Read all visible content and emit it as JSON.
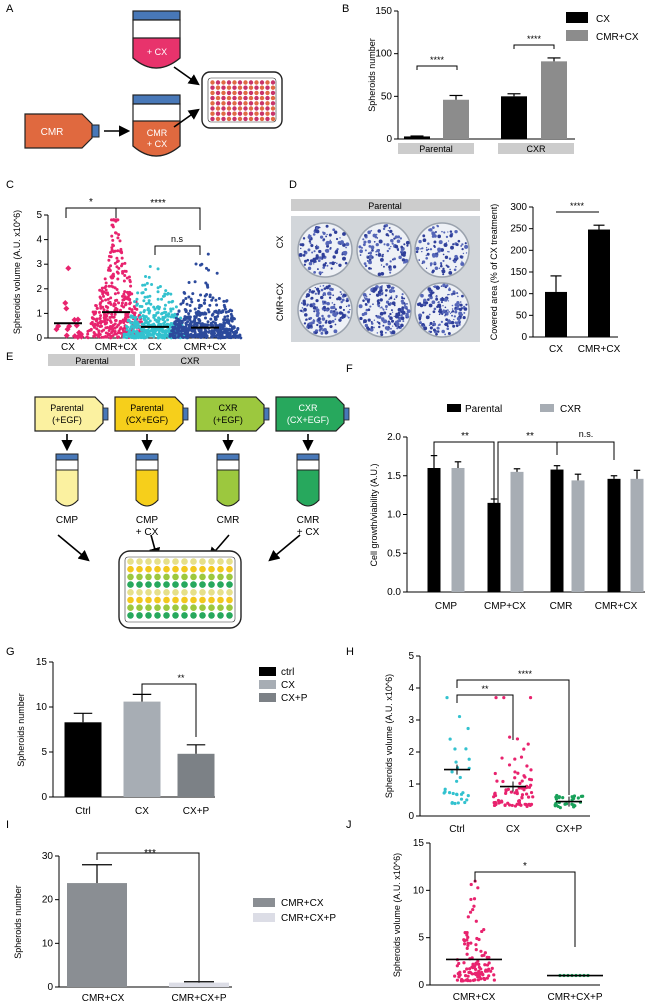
{
  "panel_labels": [
    "A",
    "B",
    "C",
    "D",
    "E",
    "F",
    "G",
    "H",
    "I",
    "J"
  ],
  "colors": {
    "black": "#000000",
    "grey": "#8c8c8c",
    "light_grey": "#a7adb4",
    "dark_grey": "#7c8186",
    "pink": "#e8236e",
    "cyan": "#33c2cf",
    "navy": "#2c4a9c",
    "green": "#19a15a",
    "tube_pink": "#e8336c",
    "tube_orange": "#e0693f",
    "cap_blue": "#4878b8",
    "yellow_light": "#fbf1a0",
    "yellow": "#f6cf1b",
    "lime": "#9cc83e",
    "green_dark": "#27a85d"
  },
  "panelA": {
    "tube1_label": "+ CX",
    "flask_label": "CMR",
    "tube2_label_line1": "CMR",
    "tube2_label_line2": "+ CX"
  },
  "panelD": {
    "plate_header": "Parental",
    "row1": "CX",
    "row2": "CMR+CX"
  },
  "panelE": {
    "boxes": [
      {
        "line1": "Parental",
        "line2": "(+EGF)",
        "color": "#fbf1a0"
      },
      {
        "line1": "Parental",
        "line2": "(CX+EGF)",
        "color": "#f6cf1b"
      },
      {
        "line1": "CXR",
        "line2": "(+EGF)",
        "color": "#9cc83e"
      },
      {
        "line1": "CXR",
        "line2": "(CX+EGF)",
        "color": "#27a85d"
      }
    ],
    "tube_labels": [
      {
        "line1": "CMP",
        "line2": ""
      },
      {
        "line1": "CMP",
        "line2": "+ CX"
      },
      {
        "line1": "CMR",
        "line2": ""
      },
      {
        "line1": "CMR",
        "line2": "+ CX"
      }
    ]
  },
  "chart_data": [
    {
      "id": "B",
      "type": "bar",
      "ylabel": "Spheroids number",
      "ylim": [
        0,
        150
      ],
      "yticks": [
        "0",
        "50",
        "100",
        "150"
      ],
      "groups": [
        "Parental",
        "CXR"
      ],
      "legend": [
        "CX",
        "CMR+CX"
      ],
      "series": [
        {
          "name": "CX",
          "values": [
            3,
            50
          ],
          "errors": [
            0.5,
            3
          ],
          "color": "#000000"
        },
        {
          "name": "CMR+CX",
          "values": [
            46,
            91
          ],
          "errors": [
            5,
            4
          ],
          "color": "#8c8c8c"
        }
      ],
      "significance": [
        {
          "label": "****"
        },
        {
          "label": "****"
        }
      ]
    },
    {
      "id": "C",
      "type": "scatter",
      "ylabel": "Spheroids volume (A.U. x10^6)",
      "ylim": [
        0,
        5
      ],
      "yticks": [
        "0",
        "1",
        "2",
        "3",
        "4",
        "5"
      ],
      "categories": [
        "CX",
        "CMR+CX",
        "CX",
        "CMR+CX"
      ],
      "groups": [
        "Parental",
        "CXR"
      ],
      "medians": [
        0.6,
        1.05,
        0.45,
        0.42
      ],
      "significance": [
        {
          "label": "*"
        },
        {
          "label": "****"
        },
        {
          "label": "n.s"
        }
      ]
    },
    {
      "id": "D",
      "type": "bar",
      "ylabel": "Covered area (% of CX treatment)",
      "ylim": [
        0,
        300
      ],
      "yticks": [
        "0",
        "50",
        "100",
        "150",
        "200",
        "250",
        "300"
      ],
      "categories": [
        "CX",
        "CMR+CX"
      ],
      "values": [
        104,
        248
      ],
      "errors": [
        37,
        10
      ],
      "significance": [
        {
          "label": "****"
        }
      ]
    },
    {
      "id": "F",
      "type": "bar",
      "ylabel": "Cell growth/viability (A.U.)",
      "ylim": [
        0,
        2.0
      ],
      "yticks": [
        "0.0",
        "0.5",
        "1.0",
        "1.5",
        "2.0"
      ],
      "categories": [
        "CMP",
        "CMP+CX",
        "CMR",
        "CMR+CX"
      ],
      "legend": [
        "Parental",
        "CXR"
      ],
      "series": [
        {
          "name": "Parental",
          "values": [
            1.6,
            1.15,
            1.58,
            1.46
          ],
          "errors": [
            0.16,
            0.05,
            0.05,
            0.04
          ],
          "color": "#000000"
        },
        {
          "name": "CXR",
          "values": [
            1.6,
            1.55,
            1.44,
            1.46
          ],
          "errors": [
            0.08,
            0.04,
            0.08,
            0.11
          ],
          "color": "#a7adb4"
        }
      ],
      "significance": [
        {
          "label": "**"
        },
        {
          "label": "**"
        },
        {
          "label": "n.s."
        }
      ]
    },
    {
      "id": "G",
      "type": "bar",
      "ylabel": "Spheroids number",
      "ylim": [
        0,
        15
      ],
      "yticks": [
        "0",
        "5",
        "10",
        "15"
      ],
      "categories": [
        "Ctrl",
        "CX",
        "CX+P"
      ],
      "legend": [
        "ctrl",
        "CX",
        "CX+P"
      ],
      "values": [
        8.3,
        10.6,
        4.8
      ],
      "errors": [
        1.0,
        0.8,
        1.0
      ],
      "colors": [
        "#000000",
        "#a7adb4",
        "#7c8186"
      ],
      "significance": [
        {
          "label": "**"
        }
      ]
    },
    {
      "id": "H",
      "type": "scatter",
      "ylabel": "Spheroids volume (A.U. x10^6)",
      "ylim": [
        0,
        5
      ],
      "yticks": [
        "0",
        "1",
        "2",
        "3",
        "4",
        "5"
      ],
      "categories": [
        "Ctrl",
        "CX",
        "CX+P"
      ],
      "means": [
        1.45,
        0.92,
        0.45
      ],
      "colors": [
        "#33c2cf",
        "#e8236e",
        "#19a15a"
      ],
      "significance": [
        {
          "label": "**"
        },
        {
          "label": "****"
        }
      ]
    },
    {
      "id": "I",
      "type": "bar",
      "ylabel": "Spheroids number",
      "ylim": [
        0,
        30
      ],
      "yticks": [
        "0",
        "10",
        "20",
        "30"
      ],
      "categories": [
        "CMR+CX",
        "CMR+CX+P"
      ],
      "legend": [
        "CMR+CX",
        "CMR+CX+P"
      ],
      "values": [
        23.8,
        1.0
      ],
      "errors": [
        4.2,
        0.2
      ],
      "colors": [
        "#8a8e93",
        "#dcdde6"
      ],
      "significance": [
        {
          "label": "***"
        }
      ]
    },
    {
      "id": "J",
      "type": "scatter",
      "ylabel": "Spheroids volume (A.U. x10^6)",
      "ylim": [
        0,
        15
      ],
      "yticks": [
        "0",
        "5",
        "10",
        "15"
      ],
      "categories": [
        "CMR+CX",
        "CMR+CX+P"
      ],
      "means": [
        2.7,
        1.0
      ],
      "colors": [
        "#e8236e",
        "#19a15a"
      ],
      "significance": [
        {
          "label": "*"
        }
      ]
    }
  ]
}
